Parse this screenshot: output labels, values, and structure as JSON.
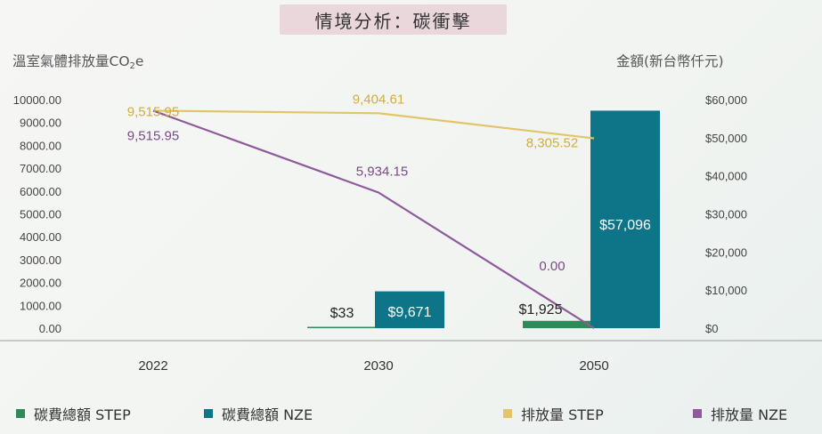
{
  "title": "情境分析：碳衝擊",
  "ylabel_left": {
    "text": "溫室氣體排放量CO",
    "sub": "2",
    "tail": "e"
  },
  "ylabel_right": "金額(新台幣仟元)",
  "colors": {
    "cost_step": "#2e8b57",
    "cost_nze": "#0e7488",
    "emission_step": "#e2c46b",
    "emission_nze": "#8e5a9c",
    "text": "#333333",
    "axis": "#9a9a9a"
  },
  "legend": [
    {
      "label": "碳費總額 STEP",
      "color": "#2e8b57"
    },
    {
      "label": "碳費總額 NZE",
      "color": "#0e7488"
    },
    {
      "label": "排放量 STEP",
      "color": "#e2c46b"
    },
    {
      "label": "排放量 NZE",
      "color": "#8e5a9c"
    }
  ],
  "chart_data": {
    "type": "bar+line",
    "categories": [
      "2022",
      "2030",
      "2050"
    ],
    "left_axis": {
      "range": [
        0,
        10000
      ],
      "ticks": [
        "0.00",
        "1000.00",
        "2000.00",
        "3000.00",
        "4000.00",
        "5000.00",
        "6000.00",
        "7000.00",
        "8000.00",
        "9000.00",
        "10000.00"
      ]
    },
    "right_axis": {
      "range": [
        0,
        60000
      ],
      "ticks": [
        "$0",
        "$10,000",
        "$20,000",
        "$30,000",
        "$40,000",
        "$50,000",
        "$60,000"
      ]
    },
    "bars": [
      {
        "name": "碳費總額 STEP",
        "axis": "right",
        "values": [
          null,
          33,
          1925
        ],
        "labels": [
          "",
          "$33",
          "$1,925"
        ]
      },
      {
        "name": "碳費總額 NZE",
        "axis": "right",
        "values": [
          null,
          9671,
          57096
        ],
        "labels": [
          "",
          "$9,671",
          "$57,096"
        ]
      }
    ],
    "lines": [
      {
        "name": "排放量 STEP",
        "axis": "left",
        "values": [
          9515.95,
          9404.61,
          8305.52
        ],
        "labels": [
          "9,515.95",
          "9,404.61",
          "8,305.52"
        ]
      },
      {
        "name": "排放量 NZE",
        "axis": "left",
        "values": [
          9515.95,
          5934.15,
          0
        ],
        "labels": [
          "9,515.95",
          "5,934.15",
          "0.00"
        ]
      }
    ]
  }
}
